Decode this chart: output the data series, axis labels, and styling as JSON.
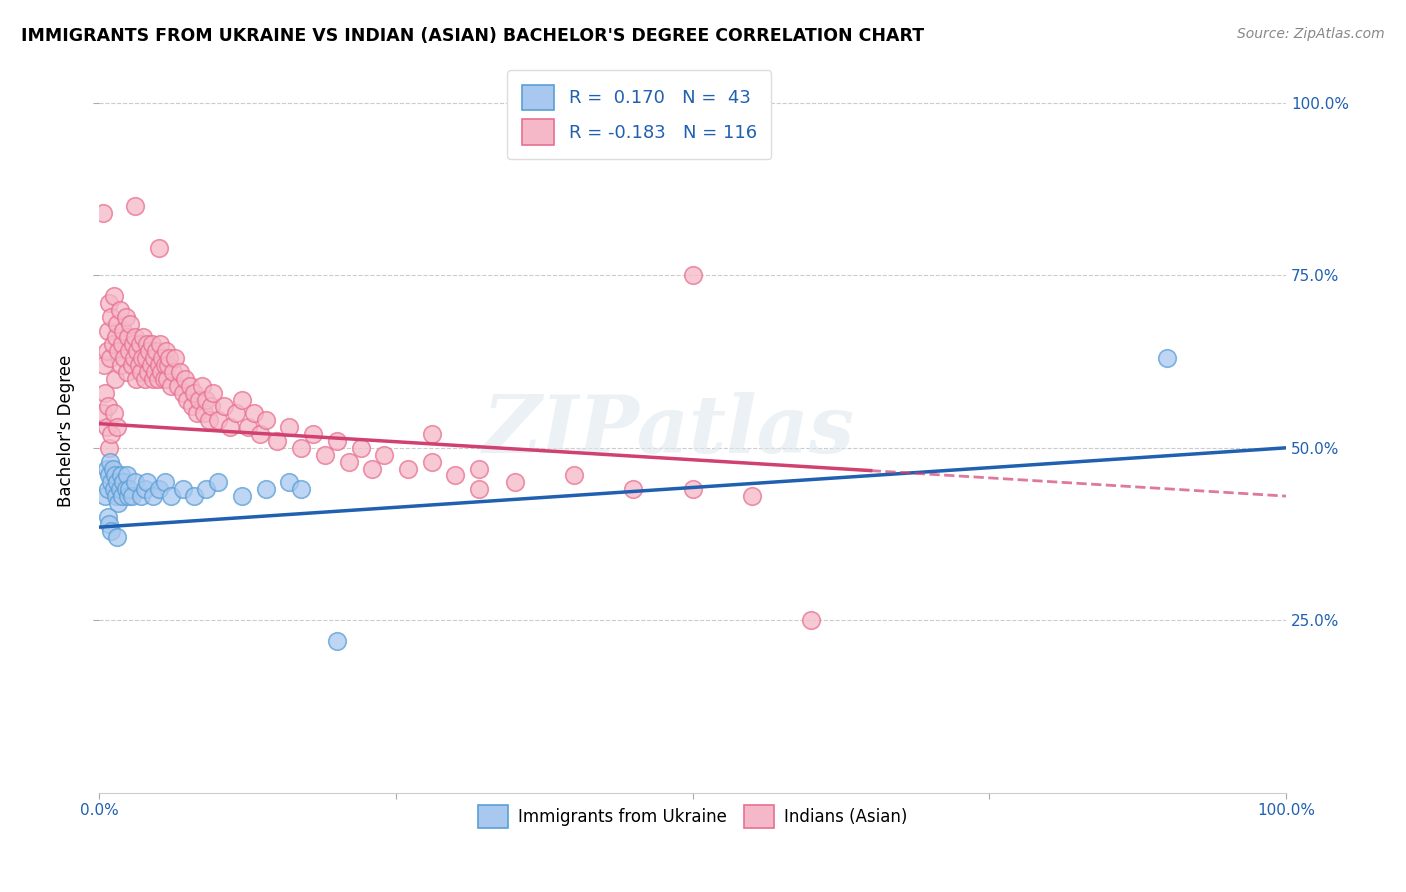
{
  "title": "IMMIGRANTS FROM UKRAINE VS INDIAN (ASIAN) BACHELOR'S DEGREE CORRELATION CHART",
  "source": "Source: ZipAtlas.com",
  "ylabel": "Bachelor's Degree",
  "legend_label1": "Immigrants from Ukraine",
  "legend_label2": "Indians (Asian)",
  "R1": 0.17,
  "N1": 43,
  "R2": -0.183,
  "N2": 116,
  "color_blue": "#a8c8f0",
  "color_pink": "#f5b8c8",
  "color_blue_edge": "#5a9fd4",
  "color_pink_edge": "#e87090",
  "color_line_blue": "#2060b0",
  "color_line_pink": "#d04070",
  "watermark": "ZIPatlas",
  "ukraine_points": [
    [
      0.005,
      0.43
    ],
    [
      0.006,
      0.47
    ],
    [
      0.007,
      0.44
    ],
    [
      0.008,
      0.46
    ],
    [
      0.009,
      0.48
    ],
    [
      0.01,
      0.45
    ],
    [
      0.011,
      0.47
    ],
    [
      0.012,
      0.44
    ],
    [
      0.013,
      0.46
    ],
    [
      0.014,
      0.43
    ],
    [
      0.015,
      0.45
    ],
    [
      0.016,
      0.42
    ],
    [
      0.017,
      0.44
    ],
    [
      0.018,
      0.46
    ],
    [
      0.019,
      0.43
    ],
    [
      0.02,
      0.45
    ],
    [
      0.022,
      0.44
    ],
    [
      0.023,
      0.46
    ],
    [
      0.024,
      0.43
    ],
    [
      0.025,
      0.44
    ],
    [
      0.027,
      0.43
    ],
    [
      0.03,
      0.45
    ],
    [
      0.035,
      0.43
    ],
    [
      0.038,
      0.44
    ],
    [
      0.04,
      0.45
    ],
    [
      0.045,
      0.43
    ],
    [
      0.05,
      0.44
    ],
    [
      0.055,
      0.45
    ],
    [
      0.06,
      0.43
    ],
    [
      0.07,
      0.44
    ],
    [
      0.08,
      0.43
    ],
    [
      0.09,
      0.44
    ],
    [
      0.1,
      0.45
    ],
    [
      0.12,
      0.43
    ],
    [
      0.14,
      0.44
    ],
    [
      0.16,
      0.45
    ],
    [
      0.17,
      0.44
    ],
    [
      0.2,
      0.22
    ],
    [
      0.007,
      0.4
    ],
    [
      0.008,
      0.39
    ],
    [
      0.01,
      0.38
    ],
    [
      0.015,
      0.37
    ],
    [
      0.9,
      0.63
    ]
  ],
  "indian_points": [
    [
      0.003,
      0.55
    ],
    [
      0.004,
      0.62
    ],
    [
      0.005,
      0.58
    ],
    [
      0.006,
      0.64
    ],
    [
      0.007,
      0.67
    ],
    [
      0.008,
      0.71
    ],
    [
      0.009,
      0.63
    ],
    [
      0.01,
      0.69
    ],
    [
      0.011,
      0.65
    ],
    [
      0.012,
      0.72
    ],
    [
      0.013,
      0.6
    ],
    [
      0.014,
      0.66
    ],
    [
      0.015,
      0.68
    ],
    [
      0.016,
      0.64
    ],
    [
      0.017,
      0.7
    ],
    [
      0.018,
      0.62
    ],
    [
      0.019,
      0.65
    ],
    [
      0.02,
      0.67
    ],
    [
      0.021,
      0.63
    ],
    [
      0.022,
      0.69
    ],
    [
      0.023,
      0.61
    ],
    [
      0.024,
      0.66
    ],
    [
      0.025,
      0.64
    ],
    [
      0.026,
      0.68
    ],
    [
      0.027,
      0.62
    ],
    [
      0.028,
      0.65
    ],
    [
      0.029,
      0.63
    ],
    [
      0.03,
      0.66
    ],
    [
      0.031,
      0.6
    ],
    [
      0.032,
      0.64
    ],
    [
      0.033,
      0.62
    ],
    [
      0.034,
      0.65
    ],
    [
      0.035,
      0.61
    ],
    [
      0.036,
      0.63
    ],
    [
      0.037,
      0.66
    ],
    [
      0.038,
      0.6
    ],
    [
      0.039,
      0.63
    ],
    [
      0.04,
      0.65
    ],
    [
      0.041,
      0.61
    ],
    [
      0.042,
      0.64
    ],
    [
      0.043,
      0.62
    ],
    [
      0.044,
      0.65
    ],
    [
      0.045,
      0.6
    ],
    [
      0.046,
      0.63
    ],
    [
      0.047,
      0.61
    ],
    [
      0.048,
      0.64
    ],
    [
      0.049,
      0.6
    ],
    [
      0.05,
      0.62
    ],
    [
      0.051,
      0.65
    ],
    [
      0.052,
      0.61
    ],
    [
      0.053,
      0.63
    ],
    [
      0.054,
      0.6
    ],
    [
      0.055,
      0.62
    ],
    [
      0.056,
      0.64
    ],
    [
      0.057,
      0.6
    ],
    [
      0.058,
      0.62
    ],
    [
      0.059,
      0.63
    ],
    [
      0.06,
      0.59
    ],
    [
      0.062,
      0.61
    ],
    [
      0.064,
      0.63
    ],
    [
      0.066,
      0.59
    ],
    [
      0.068,
      0.61
    ],
    [
      0.07,
      0.58
    ],
    [
      0.072,
      0.6
    ],
    [
      0.074,
      0.57
    ],
    [
      0.076,
      0.59
    ],
    [
      0.078,
      0.56
    ],
    [
      0.08,
      0.58
    ],
    [
      0.082,
      0.55
    ],
    [
      0.084,
      0.57
    ],
    [
      0.086,
      0.59
    ],
    [
      0.088,
      0.55
    ],
    [
      0.09,
      0.57
    ],
    [
      0.092,
      0.54
    ],
    [
      0.094,
      0.56
    ],
    [
      0.096,
      0.58
    ],
    [
      0.1,
      0.54
    ],
    [
      0.105,
      0.56
    ],
    [
      0.11,
      0.53
    ],
    [
      0.115,
      0.55
    ],
    [
      0.12,
      0.57
    ],
    [
      0.125,
      0.53
    ],
    [
      0.13,
      0.55
    ],
    [
      0.135,
      0.52
    ],
    [
      0.14,
      0.54
    ],
    [
      0.15,
      0.51
    ],
    [
      0.16,
      0.53
    ],
    [
      0.17,
      0.5
    ],
    [
      0.18,
      0.52
    ],
    [
      0.19,
      0.49
    ],
    [
      0.2,
      0.51
    ],
    [
      0.21,
      0.48
    ],
    [
      0.22,
      0.5
    ],
    [
      0.23,
      0.47
    ],
    [
      0.24,
      0.49
    ],
    [
      0.26,
      0.47
    ],
    [
      0.28,
      0.48
    ],
    [
      0.3,
      0.46
    ],
    [
      0.32,
      0.47
    ],
    [
      0.35,
      0.45
    ],
    [
      0.4,
      0.46
    ],
    [
      0.45,
      0.44
    ],
    [
      0.5,
      0.44
    ],
    [
      0.55,
      0.43
    ],
    [
      0.6,
      0.25
    ],
    [
      0.003,
      0.84
    ],
    [
      0.03,
      0.85
    ],
    [
      0.05,
      0.79
    ],
    [
      0.5,
      0.75
    ],
    [
      0.28,
      0.52
    ],
    [
      0.32,
      0.44
    ],
    [
      0.006,
      0.53
    ],
    [
      0.007,
      0.56
    ],
    [
      0.008,
      0.5
    ],
    [
      0.01,
      0.52
    ],
    [
      0.012,
      0.55
    ],
    [
      0.015,
      0.53
    ]
  ]
}
